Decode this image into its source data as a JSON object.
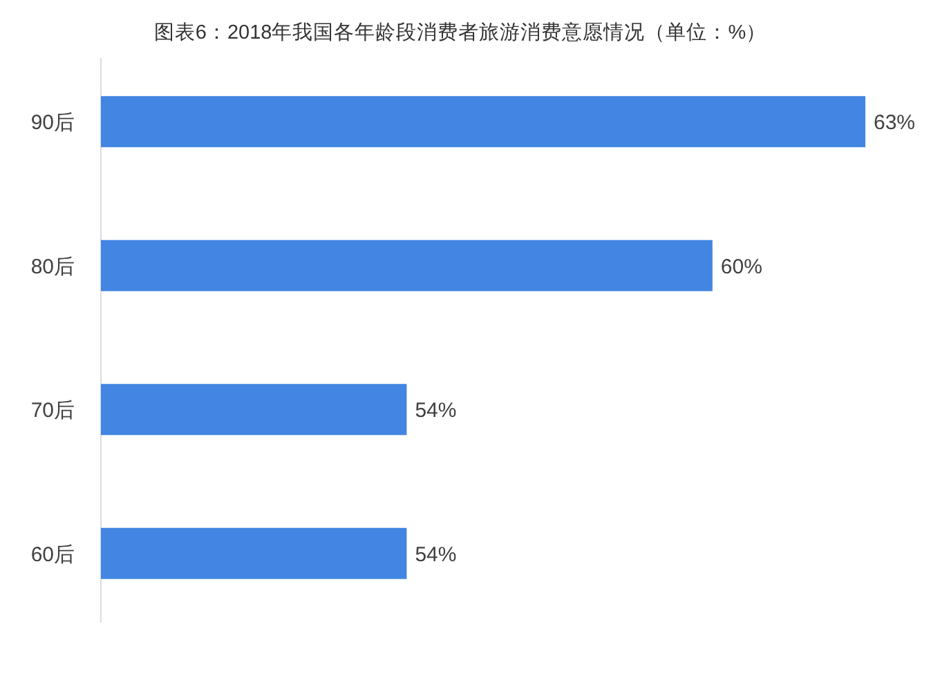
{
  "chart_data": {
    "type": "bar",
    "orientation": "horizontal",
    "title": "图表6：2018年我国各年龄段消费者旅游消费意愿情况（单位：%）",
    "categories": [
      "90后",
      "80后",
      "70后",
      "60后"
    ],
    "values": [
      63,
      60,
      54,
      54
    ],
    "value_labels": [
      "63%",
      "60%",
      "54%",
      "54%"
    ],
    "color": "#4285e2",
    "xlim": [
      48,
      63
    ],
    "tick_labels": "y"
  }
}
